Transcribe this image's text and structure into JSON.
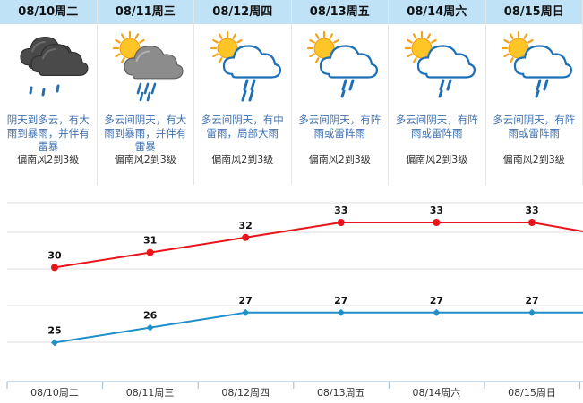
{
  "days": [
    {
      "header": "08/10周二",
      "icon": "heavy-rain-cloud-icon",
      "desc": "阴天到多云，有大雨到暴雨，并伴有雷暴",
      "wind": "偏南风2到3级"
    },
    {
      "header": "08/11周三",
      "icon": "sun-heavy-rain-cloud-icon",
      "desc": "多云间阴天，有大雨到暴雨，并伴有雷暴",
      "wind": "偏南风2到3级"
    },
    {
      "header": "08/12周四",
      "icon": "sun-thunder-rain-cloud-icon",
      "desc": "多云间阴天，有中雷雨，局部大雨",
      "wind": "偏南风2到3级"
    },
    {
      "header": "08/13周五",
      "icon": "sun-shower-cloud-icon",
      "desc": "多云间阴天，有阵雨或雷阵雨",
      "wind": "偏南风2到3级"
    },
    {
      "header": "08/14周六",
      "icon": "sun-shower-cloud-icon",
      "desc": "多云间阴天，有阵雨或雷阵雨",
      "wind": "偏南风2到3级"
    },
    {
      "header": "08/15周日",
      "icon": "sun-shower-cloud-icon",
      "desc": "多云间阴天，有阵雨或雷阵雨",
      "wind": "偏南风2到3级"
    }
  ],
  "chart_data": {
    "type": "line",
    "categories": [
      "08/10周二",
      "08/11周三",
      "08/12周四",
      "08/13周五",
      "08/14周六",
      "08/15周日"
    ],
    "series": [
      {
        "values": [
          30,
          31,
          32,
          33,
          33,
          33
        ],
        "color": "#e8141b"
      },
      {
        "values": [
          25,
          26,
          27,
          27,
          27,
          27
        ],
        "color": "#1f8fc9"
      }
    ],
    "grid": true
  }
}
